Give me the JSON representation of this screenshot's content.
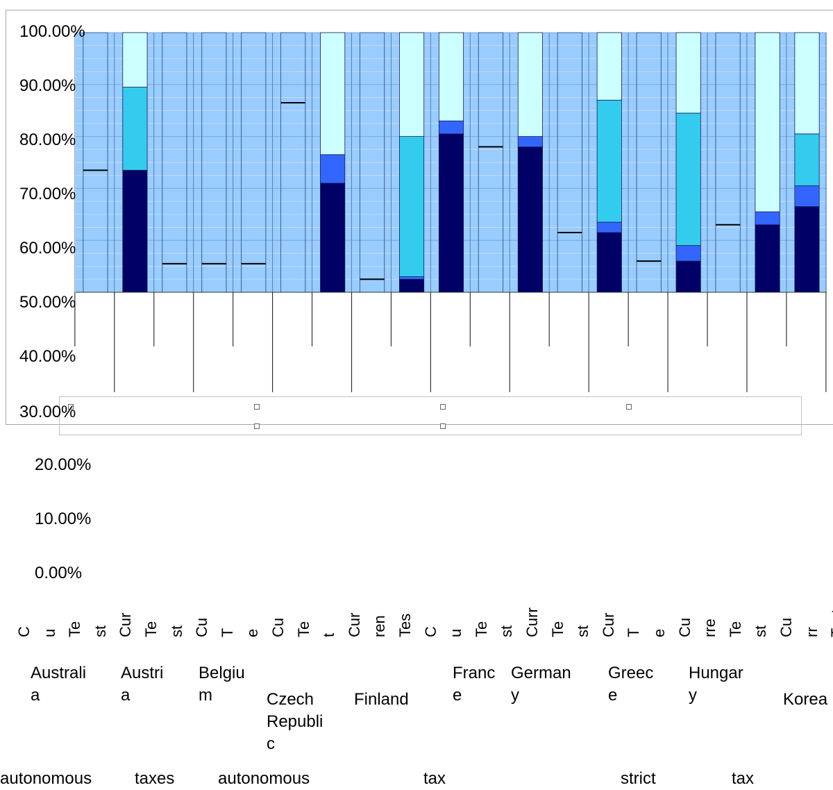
{
  "chart_data": {
    "type": "bar",
    "stacked": true,
    "y_tick_labels": [
      "100.00%",
      "90.00%",
      "80.00%",
      "70.00%",
      "60.00%",
      "50.00%",
      "40.00%",
      "30.00%",
      "20.00%",
      "10.00%",
      "0.00%"
    ],
    "ylim": [
      0,
      100
    ],
    "grid": true,
    "countries": [
      "Australia",
      "Austria",
      "Belgium",
      "Czech Republic",
      "Finland",
      "France",
      "Germany",
      "Greece",
      "Hungary",
      "Korea"
    ],
    "country_labels": [
      "Australi\na",
      "Austri\na",
      "Belgiu\nm",
      "Czech\nRepubli\nc",
      "Finland",
      "Franc\ne",
      "German\ny",
      "Greec\ne",
      "Hungar\ny",
      "Korea"
    ],
    "bar_sublabels": [
      "C",
      "u",
      "Te",
      "st",
      "Cur",
      "Te",
      "st",
      "Cu",
      "T",
      "e",
      "Cu",
      "Te",
      "t",
      "Cur",
      "ren",
      "Tes",
      "C",
      "u",
      "Te",
      "st",
      "Curr",
      "Te",
      "st",
      "Cur",
      "T",
      "e",
      "Cu",
      "rre",
      "Te",
      "st",
      "Cu",
      "rr",
      "Test"
    ],
    "bottom_labels": [
      "autonomous",
      "taxes",
      "autonomous",
      "tax",
      "strict",
      "tax"
    ],
    "series_colors": [
      "#000066",
      "#3366ff",
      "#33ccee",
      "#ccffff"
    ],
    "bars": [
      {
        "segments": [
          73.5,
          0,
          0,
          0
        ]
      },
      {
        "segments": [
          73.5,
          0,
          16,
          10.5
        ]
      },
      {
        "segments": [
          55.5,
          0,
          0,
          0
        ]
      },
      {
        "segments": [
          55.5,
          0,
          0,
          0
        ]
      },
      {
        "segments": [
          55.5,
          5,
          19.5,
          19.5
        ]
      },
      {
        "segments": [
          86.5,
          0,
          0,
          0
        ]
      },
      {
        "segments": [
          71,
          5.5,
          0,
          23.5
        ]
      },
      {
        "segments": [
          52.5,
          0,
          0,
          0
        ]
      },
      {
        "segments": [
          52.5,
          0.5,
          27,
          20
        ]
      },
      {
        "segments": [
          80.5,
          2.5,
          0,
          17
        ]
      },
      {
        "segments": [
          78,
          0,
          0,
          0
        ]
      },
      {
        "segments": [
          78,
          2,
          0,
          20
        ]
      },
      {
        "segments": [
          61.5,
          0,
          0,
          0
        ]
      },
      {
        "segments": [
          61.5,
          2,
          23.5,
          13
        ]
      },
      {
        "segments": [
          56,
          0,
          0,
          0
        ]
      },
      {
        "segments": [
          56,
          3,
          25.5,
          15.5
        ]
      },
      {
        "segments": [
          63,
          0,
          0,
          0
        ]
      },
      {
        "segments": [
          63,
          2.5,
          0,
          34.5
        ]
      },
      {
        "segments": [
          66.5,
          4,
          10,
          19.5
        ]
      }
    ]
  }
}
